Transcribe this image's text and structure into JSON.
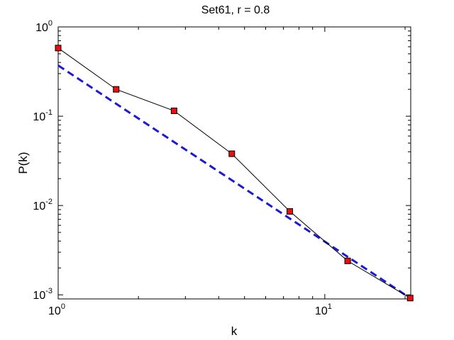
{
  "chart_data": {
    "type": "line",
    "title": "Set61, r = 0.8",
    "xlabel": "k",
    "ylabel": "P(k)",
    "x_scale": "log",
    "y_scale": "log",
    "xlim": [
      1,
      21
    ],
    "ylim": [
      0.0009,
      1
    ],
    "grid": false,
    "x_ticks": [
      {
        "value": 1,
        "base": "10",
        "exp": "0"
      },
      {
        "value": 10,
        "base": "10",
        "exp": "1"
      }
    ],
    "y_ticks": [
      {
        "value": 1,
        "base": "10",
        "exp": "0"
      },
      {
        "value": 0.1,
        "base": "10",
        "exp": "-1"
      },
      {
        "value": 0.01,
        "base": "10",
        "exp": "-2"
      },
      {
        "value": 0.001,
        "base": "10",
        "exp": "-3"
      }
    ],
    "series": [
      {
        "style": "solid-line-square-markers",
        "line_color": "#000000",
        "marker_color": "#e8100f",
        "x": [
          1,
          1.65,
          2.72,
          4.48,
          7.39,
          12.18,
          20.9
        ],
        "y": [
          0.58,
          0.2,
          0.115,
          0.038,
          0.0086,
          0.0024,
          0.00092
        ]
      },
      {
        "style": "dashed",
        "line_color": "#1a1ad6",
        "x": [
          1,
          20.9
        ],
        "y": [
          0.37,
          0.00092
        ]
      }
    ]
  }
}
